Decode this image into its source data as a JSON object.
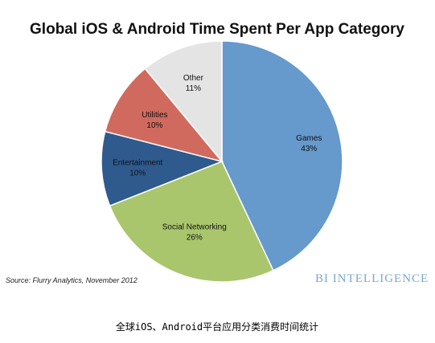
{
  "chart_data": {
    "type": "pie",
    "title": "Global iOS & Android Time Spent Per App Category",
    "slices": [
      {
        "label": "Games",
        "value": 43,
        "value_label": "43%",
        "color": "#6699cc"
      },
      {
        "label": "Social Networking",
        "value": 26,
        "value_label": "26%",
        "color": "#a9c66c"
      },
      {
        "label": "Entertainment",
        "value": 10,
        "value_label": "10%",
        "color": "#2f5a8e"
      },
      {
        "label": "Utilities",
        "value": 10,
        "value_label": "10%",
        "color": "#d16a5e"
      },
      {
        "label": "Other",
        "value": 11,
        "value_label": "11%",
        "color": "#e4e4e4"
      }
    ],
    "start": "top",
    "direction": "clockwise"
  },
  "source": "Source: Flurry Analytics, November 2012",
  "brand": "BI INTELLIGENCE",
  "caption": "全球iOS、Android平台应用分类消费时间统计"
}
